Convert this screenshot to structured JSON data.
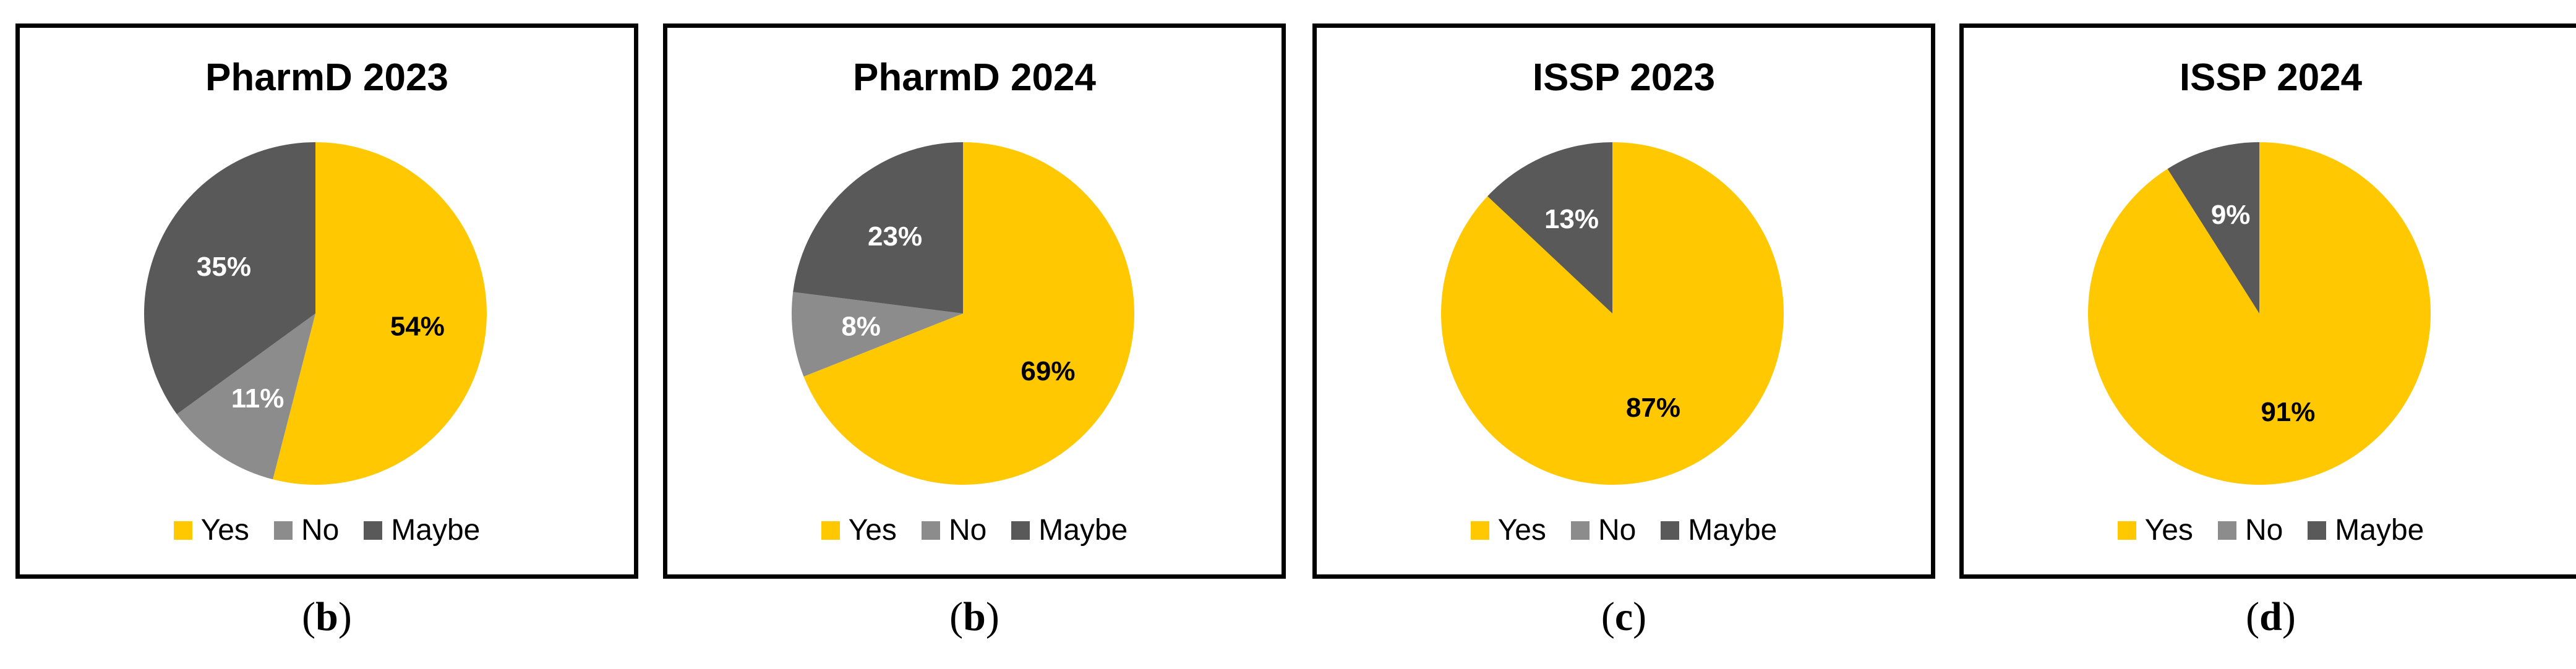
{
  "colors": {
    "Yes": "#FFC800",
    "No": "#8C8C8C",
    "Maybe": "#595959"
  },
  "legend_labels": [
    "Yes",
    "No",
    "Maybe"
  ],
  "chart_data": [
    {
      "type": "pie",
      "title": "PharmD 2023",
      "caption": "b",
      "categories": [
        "Yes",
        "No",
        "Maybe"
      ],
      "values": [
        54,
        11,
        35
      ],
      "data_labels": [
        "54%",
        "11%",
        "35%"
      ],
      "legend": "bottom"
    },
    {
      "type": "pie",
      "title": "PharmD 2024",
      "caption": "b",
      "categories": [
        "Yes",
        "No",
        "Maybe"
      ],
      "values": [
        69,
        8,
        23
      ],
      "data_labels": [
        "69%",
        "8%",
        "23%"
      ],
      "legend": "bottom"
    },
    {
      "type": "pie",
      "title": "ISSP 2023",
      "caption": "c",
      "categories": [
        "Yes",
        "No",
        "Maybe"
      ],
      "values": [
        87,
        0,
        13
      ],
      "data_labels": [
        "87%",
        "",
        "13%"
      ],
      "legend": "bottom"
    },
    {
      "type": "pie",
      "title": "ISSP 2024",
      "caption": "d",
      "categories": [
        "Yes",
        "No",
        "Maybe"
      ],
      "values": [
        91,
        0,
        9
      ],
      "data_labels": [
        "91%",
        "",
        "9%"
      ],
      "legend": "bottom"
    }
  ]
}
